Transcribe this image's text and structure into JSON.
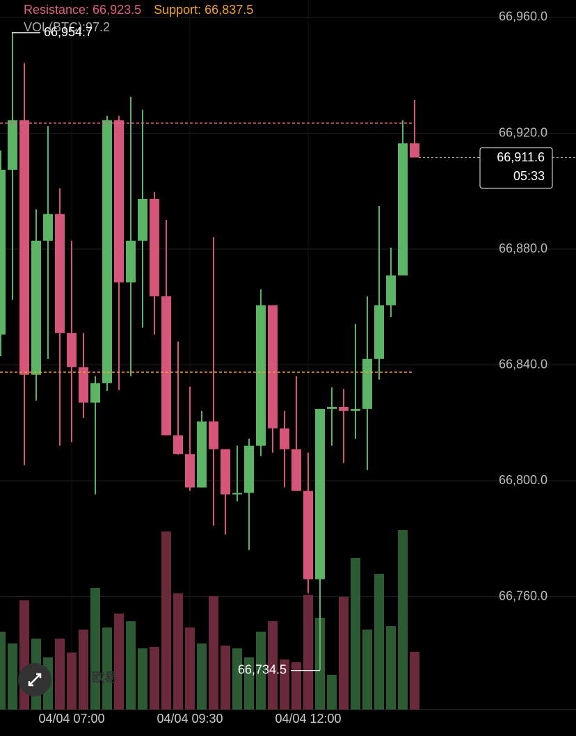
{
  "chart_data": {
    "type": "candlestick",
    "resistance": {
      "label": "Resistance:",
      "value": 66923.5,
      "value_label": "66,923.5",
      "color": "#e0607e"
    },
    "support": {
      "label": "Support:",
      "value": 66837.5,
      "value_label": "66,837.5",
      "color": "#f0a030"
    },
    "categories": [
      null,
      null,
      null,
      null,
      null,
      null,
      "04/04 07:00",
      null,
      null,
      null,
      null,
      null,
      null,
      null,
      null,
      null,
      "04/04 09:30",
      null,
      null,
      null,
      null,
      null,
      null,
      null,
      null,
      null,
      "04/04 12:00",
      null,
      null,
      null,
      null,
      null,
      null,
      null,
      null,
      null
    ],
    "open": [
      66850.5,
      66907.4,
      66924.5,
      66836.6,
      66882.9,
      66892.1,
      66851.0,
      66839.2,
      66827.0,
      66833.7,
      66924.5,
      66868.5,
      66882.9,
      66897.3,
      66863.7,
      66815.7,
      66809.2,
      66797.7,
      66820.5,
      66810.9,
      66795.3,
      66795.8,
      66812.1,
      66860.6,
      66818.1,
      66810.9,
      66796.5,
      66766.0,
      66824.8,
      66825.5,
      66824.1,
      66824.8,
      66842.1,
      66860.6,
      66870.9,
      66916.5
    ],
    "high": [
      66914.0,
      66954.7,
      66944.2,
      66893.7,
      66922.5,
      66901.0,
      66882.9,
      66851.0,
      66836.1,
      66926.0,
      66926.0,
      66932.6,
      66928.1,
      66899.7,
      66890.1,
      66848.1,
      66832.5,
      66824.1,
      66884.1,
      66810.9,
      66812.1,
      66814.5,
      66866.1,
      66860.6,
      66824.1,
      66836.1,
      66809.7,
      66824.8,
      66832.3,
      66831.7,
      66854.1,
      66863.7,
      66894.9,
      66880.5,
      66924.5,
      66931.4
    ],
    "low": [
      66843.0,
      66862.5,
      66805.4,
      66827.7,
      66842.1,
      66812.1,
      66813.3,
      66821.7,
      66795.3,
      66831.0,
      66831.3,
      66836.1,
      66852.9,
      66850.5,
      66815.7,
      66809.0,
      66796.5,
      66797.7,
      66784.5,
      66781.4,
      66792.9,
      66776.1,
      66808.5,
      66809.7,
      66797.7,
      66796.5,
      66761.2,
      66734.5,
      66812.1,
      66806.1,
      66814.5,
      66803.7,
      66834.9,
      66856.5,
      66870.9,
      66911.6
    ],
    "close": [
      66907.4,
      66924.5,
      66836.6,
      66882.9,
      66892.1,
      66851.0,
      66839.2,
      66827.0,
      66833.7,
      66924.5,
      66868.5,
      66882.9,
      66897.3,
      66863.7,
      66815.7,
      66809.2,
      66797.7,
      66820.5,
      66810.9,
      66795.3,
      66795.8,
      66812.1,
      66860.6,
      66818.1,
      66810.9,
      66796.5,
      66766.0,
      66824.8,
      66825.5,
      66824.1,
      66824.8,
      66842.1,
      66860.6,
      66870.9,
      66916.5,
      66911.6
    ],
    "up_color": "#5bb564",
    "down_color": "#d65679",
    "volume": {
      "name": "VOL(BTC):",
      "up_color": "#2c5a33",
      "down_color": "#6b2a3c",
      "values": [
        131.2,
        111.3,
        183.9,
        119.5,
        87.8,
        119.5,
        96.0,
        134.7,
        204.9,
        138.2,
        161.6,
        148.7,
        103.1,
        105.4,
        299.8,
        195.6,
        138.2,
        111.3,
        190.9,
        107.7,
        103.1,
        87.8,
        131.2,
        148.7,
        84.3,
        79.6,
        193.2,
        154.6,
        58.6,
        189.7,
        255.3,
        134.7,
        228.4,
        140.5,
        302.1,
        97.2
      ]
    },
    "high_marker": {
      "value": 66954.7,
      "label": "66,954.7"
    },
    "low_marker": {
      "value": 66734.5,
      "label": "66,734.5"
    },
    "current_price": {
      "value": 66911.6,
      "label": "66,911.6",
      "countdown": "05:33"
    },
    "ylim": [
      66721,
      66966
    ],
    "yticks": [
      {
        "value": 66960,
        "label": "66,960.0"
      },
      {
        "value": 66920,
        "label": "66,920.0"
      },
      {
        "value": 66880,
        "label": "66,880.0"
      },
      {
        "value": 66840,
        "label": "66,840.0"
      },
      {
        "value": 66800,
        "label": "66,800.0"
      },
      {
        "value": 66760,
        "label": "66,760.0"
      }
    ],
    "grid": true,
    "watermark": "欧易"
  }
}
